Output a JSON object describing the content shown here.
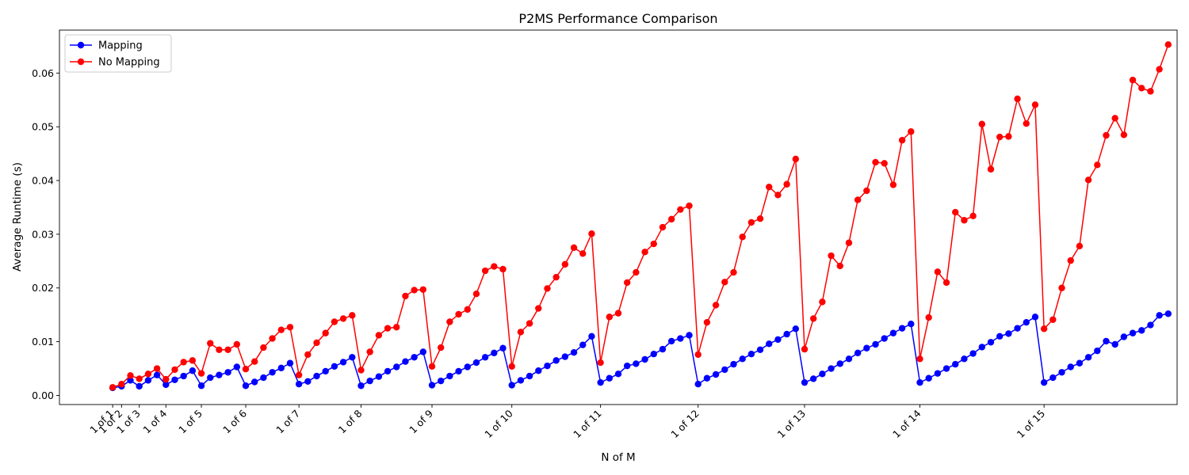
{
  "chart_data": {
    "type": "line",
    "title": "P2MS Performance Comparison",
    "xlabel": "N of M",
    "ylabel": "Average Runtime (s)",
    "ylim": [
      -0.0017,
      0.068
    ],
    "yticks": [
      0.0,
      0.01,
      0.02,
      0.03,
      0.04,
      0.05,
      0.06
    ],
    "ytick_labels": [
      "0.00",
      "0.01",
      "0.02",
      "0.03",
      "0.04",
      "0.05",
      "0.06"
    ],
    "xlim": [
      -6,
      120
    ],
    "xticks": [
      0,
      1,
      3,
      6,
      10,
      15,
      21,
      28,
      36,
      45,
      55,
      66,
      78,
      91,
      105
    ],
    "xtick_labels": [
      "1 of 1",
      "1 of 2",
      "1 of 3",
      "1 of 4",
      "1 of 5",
      "1 of 6",
      "1 of 7",
      "1 of 8",
      "1 of 9",
      "1 of 10",
      "1 of 11",
      "1 of 12",
      "1 of 13",
      "1 of 14",
      "1 of 15"
    ],
    "grid": false,
    "legend_position": "top-left",
    "series": [
      {
        "name": "Mapping",
        "color": "#0000ff",
        "values": [
          0.0014,
          0.0017,
          0.0028,
          0.0017,
          0.0028,
          0.0038,
          0.002,
          0.0029,
          0.0036,
          0.0046,
          0.0018,
          0.0033,
          0.0038,
          0.0043,
          0.0053,
          0.0018,
          0.0025,
          0.0033,
          0.0043,
          0.0051,
          0.006,
          0.0021,
          0.0026,
          0.0036,
          0.0045,
          0.0054,
          0.0062,
          0.0071,
          0.0018,
          0.0027,
          0.0035,
          0.0045,
          0.0053,
          0.0063,
          0.0071,
          0.0081,
          0.0019,
          0.0027,
          0.0036,
          0.0045,
          0.0053,
          0.0061,
          0.0071,
          0.0079,
          0.0088,
          0.0019,
          0.0028,
          0.0036,
          0.0046,
          0.0055,
          0.0065,
          0.0072,
          0.008,
          0.0094,
          0.011,
          0.0024,
          0.0032,
          0.004,
          0.0055,
          0.0059,
          0.0067,
          0.0077,
          0.0086,
          0.0101,
          0.0106,
          0.0112,
          0.0021,
          0.0032,
          0.0039,
          0.0048,
          0.0058,
          0.0068,
          0.0077,
          0.0085,
          0.0096,
          0.0104,
          0.0114,
          0.0124,
          0.0024,
          0.0031,
          0.004,
          0.005,
          0.0059,
          0.0068,
          0.0079,
          0.0088,
          0.0095,
          0.0106,
          0.0116,
          0.0125,
          0.0133,
          0.0024,
          0.0032,
          0.0041,
          0.005,
          0.0058,
          0.0068,
          0.0078,
          0.009,
          0.0099,
          0.011,
          0.0115,
          0.0125,
          0.0136,
          0.0146,
          0.0024,
          0.0033,
          0.0043,
          0.0053,
          0.006,
          0.0071,
          0.0083,
          0.0101,
          0.0095,
          0.0109,
          0.0116,
          0.0121,
          0.0131,
          0.0149,
          0.0152
        ]
      },
      {
        "name": "No Mapping",
        "color": "#ff0000",
        "values": [
          0.0015,
          0.0021,
          0.0037,
          0.0031,
          0.004,
          0.005,
          0.003,
          0.0048,
          0.0062,
          0.0065,
          0.0041,
          0.0097,
          0.0085,
          0.0085,
          0.0095,
          0.0049,
          0.0063,
          0.0089,
          0.0106,
          0.0122,
          0.0127,
          0.0038,
          0.0076,
          0.0098,
          0.0116,
          0.0137,
          0.0143,
          0.0149,
          0.0047,
          0.0081,
          0.0112,
          0.0125,
          0.0127,
          0.0185,
          0.0196,
          0.0197,
          0.0054,
          0.0089,
          0.0137,
          0.0151,
          0.016,
          0.0189,
          0.0232,
          0.024,
          0.0235,
          0.0054,
          0.0118,
          0.0134,
          0.0162,
          0.0199,
          0.022,
          0.0244,
          0.0275,
          0.0264,
          0.0301,
          0.0061,
          0.0146,
          0.0153,
          0.021,
          0.0229,
          0.0267,
          0.0282,
          0.0313,
          0.0328,
          0.0346,
          0.0353,
          0.0076,
          0.0136,
          0.0168,
          0.0211,
          0.0229,
          0.0295,
          0.0322,
          0.0329,
          0.0388,
          0.0373,
          0.0393,
          0.044,
          0.0086,
          0.0143,
          0.0174,
          0.026,
          0.0241,
          0.0284,
          0.0364,
          0.0381,
          0.0434,
          0.0432,
          0.0392,
          0.0475,
          0.0491,
          0.0068,
          0.0145,
          0.023,
          0.021,
          0.0341,
          0.0326,
          0.0334,
          0.0505,
          0.0421,
          0.0481,
          0.0482,
          0.0552,
          0.0506,
          0.0541,
          0.0124,
          0.0141,
          0.02,
          0.0251,
          0.0278,
          0.0401,
          0.0429,
          0.0484,
          0.0516,
          0.0485,
          0.0587,
          0.0572,
          0.0566,
          0.0607,
          0.0653
        ]
      }
    ]
  }
}
